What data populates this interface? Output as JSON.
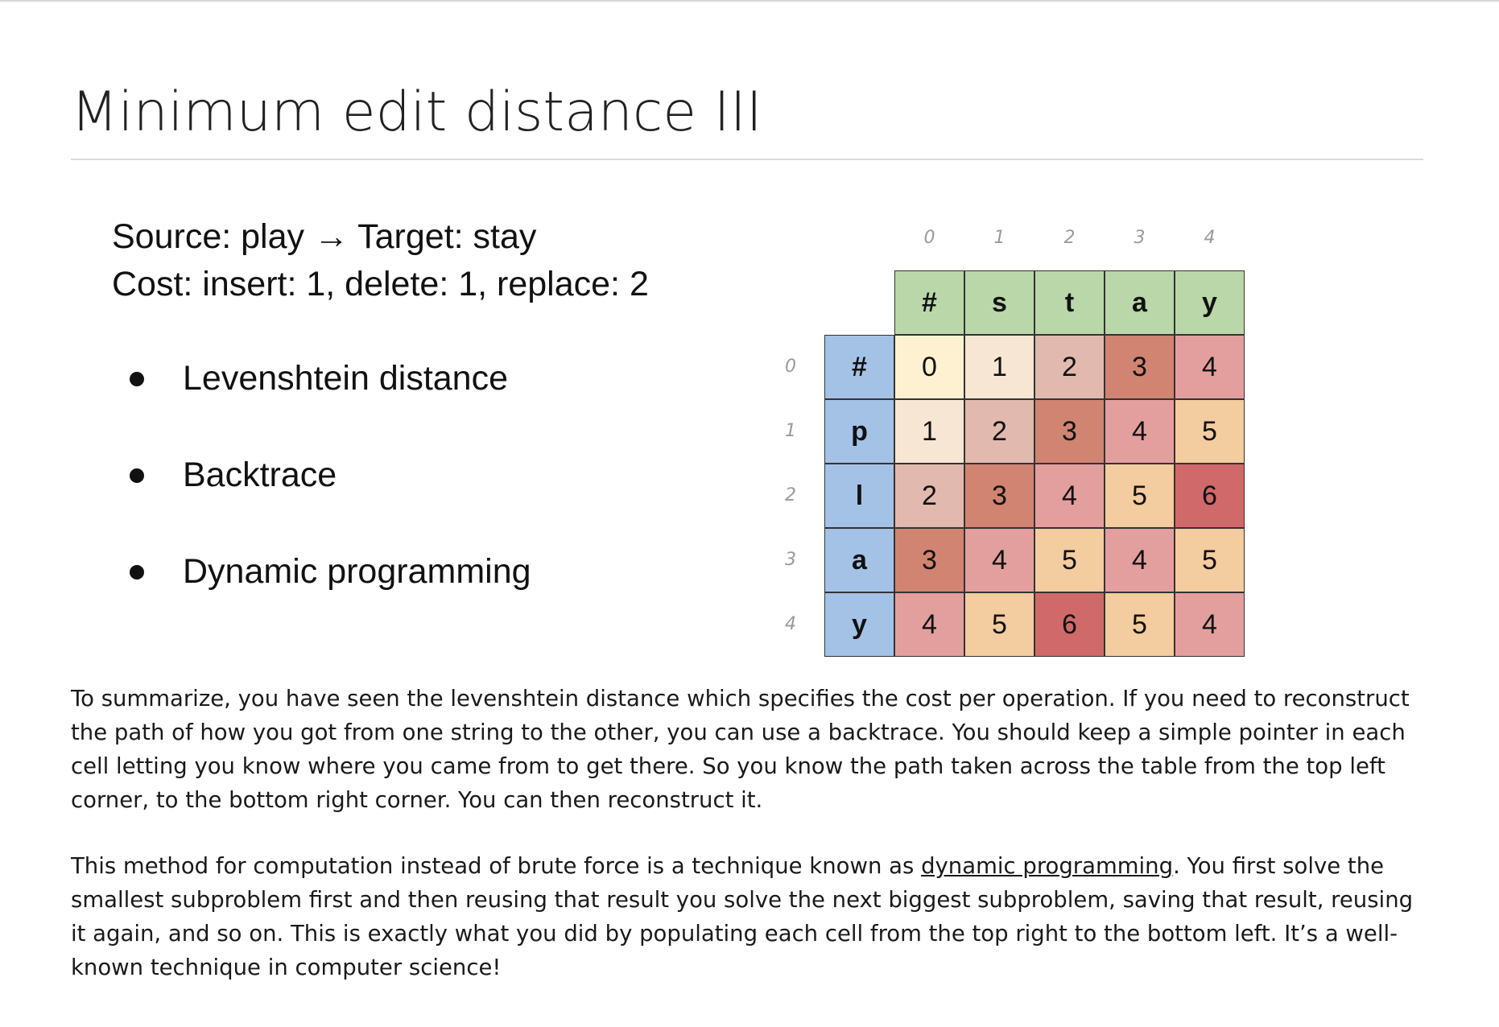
{
  "page": {
    "title": "Minimum edit distance III"
  },
  "slide": {
    "source_line": "Source: play → Target: stay",
    "cost_line": "Cost: insert: 1,  delete: 1, replace: 2",
    "bullets": [
      {
        "label": "Levenshtein distance"
      },
      {
        "label": "Backtrace"
      },
      {
        "label": "Dynamic programming"
      }
    ]
  },
  "table": {
    "col_indices": [
      "0",
      "1",
      "2",
      "3",
      "4"
    ],
    "row_indices": [
      "0",
      "1",
      "2",
      "3",
      "4"
    ],
    "col_headers": [
      "#",
      "s",
      "t",
      "a",
      "y"
    ],
    "row_headers": [
      "#",
      "p",
      "l",
      "a",
      "y"
    ],
    "values": [
      [
        0,
        1,
        2,
        3,
        4
      ],
      [
        1,
        2,
        3,
        4,
        5
      ],
      [
        2,
        3,
        4,
        5,
        6
      ],
      [
        3,
        4,
        5,
        4,
        5
      ],
      [
        4,
        5,
        6,
        5,
        4
      ]
    ],
    "colors": {
      "col_header_bg": "#b9d7a8",
      "row_header_bg": "#a4c2e6",
      "cells": [
        [
          "#fdf1d2",
          "#f8e6d4",
          "#e1b9ae",
          "#d08471",
          "#e39f9e"
        ],
        [
          "#f8e6d4",
          "#e1b9ae",
          "#d08471",
          "#e39f9e",
          "#f3cc9f"
        ],
        [
          "#e1b9ae",
          "#d08471",
          "#e39f9e",
          "#f3cc9f",
          "#d0696a"
        ],
        [
          "#d08471",
          "#e39f9e",
          "#f3cc9f",
          "#e39f9e",
          "#f3cc9f"
        ],
        [
          "#e39f9e",
          "#f3cc9f",
          "#d0696a",
          "#f3cc9f",
          "#e39f9e"
        ]
      ]
    }
  },
  "summary": {
    "p1": "To summarize, you have seen the levenshtein distance which specifies the cost per operation. If you need to reconstruct the path of how you got from one string to the other, you can use a backtrace. You should keep a simple pointer in each cell letting you know where you came from to get there. So you know the path taken across the table from the top left corner, to the bottom right corner. You can then reconstruct it.",
    "p2_before": "This method for computation instead of brute force is a technique known as ",
    "p2_link": "dynamic programming",
    "p2_after": ". You first solve the smallest subproblem first and then reusing that result you solve the next biggest subproblem, saving that result, reusing it again, and so on. This is exactly what you did by populating each cell from the top right to the bottom left. It’s a well-known technique in computer science!"
  }
}
